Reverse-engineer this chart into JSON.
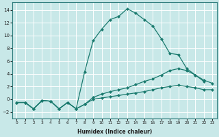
{
  "xlabel": "Humidex (Indice chaleur)",
  "bg_color": "#c8e8e8",
  "grid_color": "#ffffff",
  "line_color": "#1a7a6e",
  "xlim": [
    -0.5,
    23.5
  ],
  "ylim": [
    -3.0,
    15.2
  ],
  "xticks": [
    0,
    1,
    2,
    3,
    4,
    5,
    6,
    7,
    8,
    9,
    10,
    11,
    12,
    13,
    14,
    15,
    16,
    17,
    18,
    19,
    20,
    21,
    22,
    23
  ],
  "yticks": [
    -2,
    0,
    2,
    4,
    6,
    8,
    10,
    12,
    14
  ],
  "curve1_x": [
    0,
    1,
    2,
    3,
    4,
    5,
    6,
    7,
    8,
    9,
    10,
    11,
    12,
    13,
    14,
    15,
    16,
    17,
    18,
    19,
    20,
    21,
    22
  ],
  "curve1_y": [
    -0.5,
    -0.5,
    -1.5,
    -0.2,
    -0.3,
    -1.5,
    -0.5,
    -1.5,
    4.3,
    9.2,
    11.0,
    12.5,
    13.0,
    14.2,
    13.5,
    12.5,
    11.5,
    9.5,
    7.2,
    7.0,
    4.8,
    3.8,
    2.8
  ],
  "curve2_x": [
    0,
    1,
    2,
    3,
    4,
    5,
    6,
    7,
    8,
    9,
    10,
    11,
    12,
    13,
    14,
    15,
    16,
    17,
    18,
    19,
    20,
    21,
    22,
    23
  ],
  "curve2_y": [
    -0.5,
    -0.5,
    -1.5,
    -0.2,
    -0.3,
    -1.5,
    -0.5,
    -1.5,
    -0.8,
    0.3,
    0.8,
    1.2,
    1.5,
    1.8,
    2.3,
    2.8,
    3.2,
    3.8,
    4.5,
    4.8,
    4.5,
    3.8,
    3.0,
    2.5
  ],
  "curve3_x": [
    0,
    1,
    2,
    3,
    4,
    5,
    6,
    7,
    8,
    9,
    10,
    11,
    12,
    13,
    14,
    15,
    16,
    17,
    18,
    19,
    20,
    21,
    22,
    23
  ],
  "curve3_y": [
    -0.5,
    -0.5,
    -1.5,
    -0.2,
    -0.3,
    -1.5,
    -0.5,
    -1.5,
    -0.8,
    0.0,
    0.2,
    0.4,
    0.6,
    0.8,
    1.0,
    1.2,
    1.5,
    1.8,
    2.0,
    2.2,
    2.0,
    1.8,
    1.5,
    1.5
  ]
}
